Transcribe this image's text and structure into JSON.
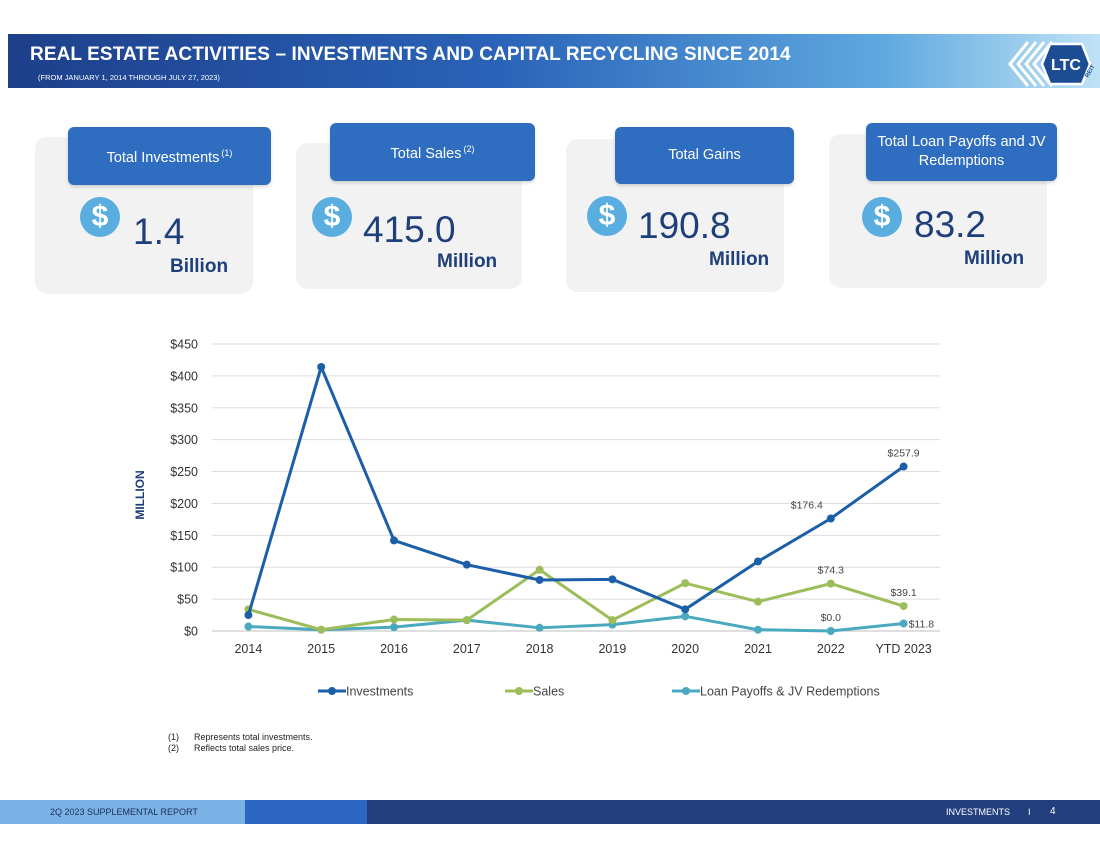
{
  "header": {
    "title": "REAL ESTATE ACTIVITIES – INVESTMENTS AND CAPITAL RECYCLING SINCE 2014",
    "subtitle": "(FROM JANUARY 1, 2014 THROUGH JULY 27, 2023)",
    "logo_text": "LTC",
    "logo_subtext": "REIT"
  },
  "cards": [
    {
      "label": "Total Investments",
      "sup": "(1)",
      "currency": "$",
      "value": "1.4",
      "unit": "Billion"
    },
    {
      "label": "Total Sales",
      "sup": "(2)",
      "currency": "$",
      "value": "415.0",
      "unit": "Million"
    },
    {
      "label": "Total Gains",
      "sup": "",
      "currency": "$",
      "value": "190.8",
      "unit": "Million"
    },
    {
      "label": "Total Loan Payoffs and JV Redemptions",
      "sup": "",
      "currency": "$",
      "value": "83.2",
      "unit": "Million"
    }
  ],
  "chart_data": {
    "type": "line",
    "ylabel": "MILLION",
    "ylim": [
      0,
      450
    ],
    "yticks": [
      0,
      50,
      100,
      150,
      200,
      250,
      300,
      350,
      400,
      450
    ],
    "ytick_labels": [
      "$0",
      "$50",
      "$100",
      "$150",
      "$200",
      "$250",
      "$300",
      "$350",
      "$400",
      "$450"
    ],
    "categories": [
      "2014",
      "2015",
      "2016",
      "2017",
      "2018",
      "2019",
      "2020",
      "2021",
      "2022",
      "YTD 2023"
    ],
    "grid": true,
    "legend_position": "bottom",
    "series": [
      {
        "name": "Investments",
        "color": "#1c5fa8",
        "values": [
          25,
          414,
          142,
          104,
          80,
          81,
          34,
          109,
          176.4,
          257.9
        ]
      },
      {
        "name": "Sales",
        "color": "#9cbd59",
        "values": [
          34,
          2,
          18,
          17,
          96,
          17,
          75,
          46,
          74.3,
          39.1
        ]
      },
      {
        "name": "Loan Payoffs & JV Redemptions",
        "color": "#4aa9bf",
        "values": [
          7,
          2,
          6,
          17,
          5,
          10,
          23,
          2,
          0.0,
          11.8
        ]
      }
    ],
    "data_labels": [
      {
        "series": 0,
        "index": 8,
        "text": "$176.4",
        "pos": "above-left"
      },
      {
        "series": 0,
        "index": 9,
        "text": "$257.9",
        "pos": "above"
      },
      {
        "series": 1,
        "index": 8,
        "text": "$74.3",
        "pos": "above"
      },
      {
        "series": 1,
        "index": 9,
        "text": "$39.1",
        "pos": "above"
      },
      {
        "series": 2,
        "index": 8,
        "text": "$0.0",
        "pos": "above"
      },
      {
        "series": 2,
        "index": 9,
        "text": "$11.8",
        "pos": "right"
      }
    ]
  },
  "footnotes": [
    {
      "mark": "(1)",
      "text": "Represents total investments."
    },
    {
      "mark": "(2)",
      "text": "Reflects total sales price."
    }
  ],
  "footer": {
    "left": "2Q 2023 SUPPLEMENTAL REPORT",
    "right": "INVESTMENTS",
    "separator": "I",
    "page": "4"
  }
}
